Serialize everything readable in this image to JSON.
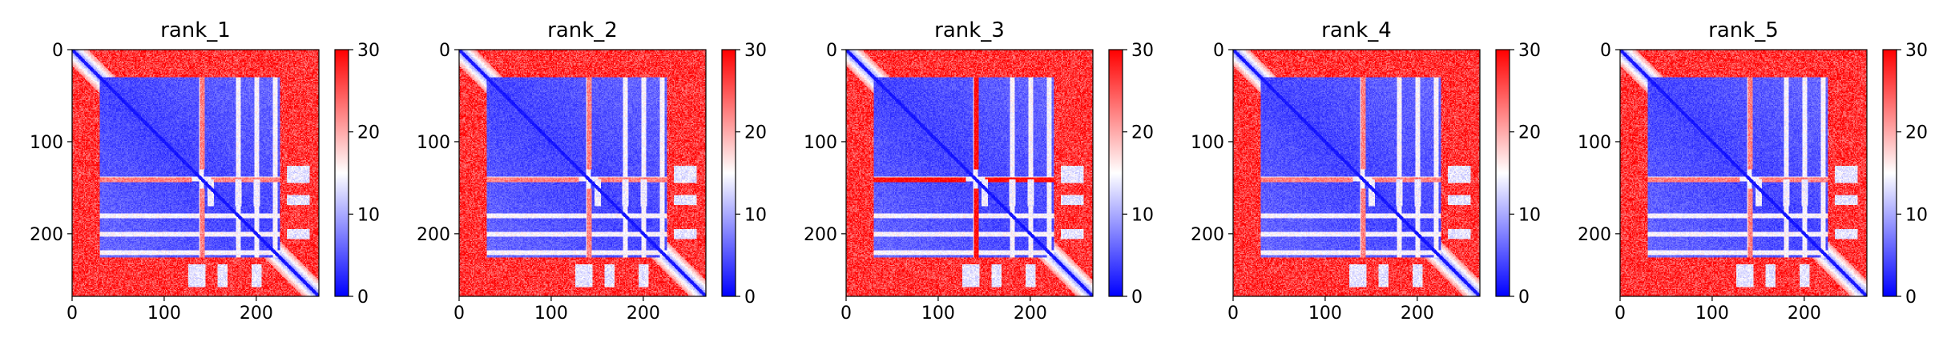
{
  "chart_data": [
    {
      "type": "heatmap",
      "title": "rank_1",
      "variant": 0,
      "matrix_size": 268,
      "x_ticks": [
        0,
        100,
        200
      ],
      "y_ticks": [
        0,
        100,
        200
      ],
      "colorbar": {
        "min": 0,
        "max": 30,
        "ticks": [
          0,
          10,
          20,
          30
        ],
        "colormap": "bwr"
      },
      "blocks": [
        [
          0,
          35
        ],
        [
          35,
          140
        ],
        [
          140,
          220
        ],
        [
          220,
          268
        ]
      ],
      "white_bands_y": [
        140,
        180,
        200,
        220
      ],
      "white_bands_x": [
        150,
        180,
        190,
        200
      ]
    },
    {
      "type": "heatmap",
      "title": "rank_2",
      "variant": 1,
      "matrix_size": 268,
      "x_ticks": [
        0,
        100,
        200
      ],
      "y_ticks": [
        0,
        100,
        200
      ],
      "colorbar": {
        "min": 0,
        "max": 30,
        "ticks": [
          0,
          10,
          20,
          30
        ],
        "colormap": "bwr"
      },
      "blocks": [
        [
          0,
          35
        ],
        [
          35,
          140
        ],
        [
          140,
          220
        ],
        [
          220,
          268
        ]
      ],
      "white_bands_y": [
        140,
        180,
        200,
        220
      ],
      "white_bands_x": [
        150,
        180,
        190,
        200
      ]
    },
    {
      "type": "heatmap",
      "title": "rank_3",
      "variant": 2,
      "matrix_size": 268,
      "x_ticks": [
        0,
        100,
        200
      ],
      "y_ticks": [
        0,
        100,
        200
      ],
      "colorbar": {
        "min": 0,
        "max": 30,
        "ticks": [
          0,
          10,
          20,
          30
        ],
        "colormap": "bwr"
      },
      "blocks": [
        [
          0,
          35
        ],
        [
          35,
          140
        ],
        [
          140,
          220
        ],
        [
          220,
          268
        ]
      ],
      "white_bands_y": [
        140,
        180,
        200,
        220
      ],
      "white_bands_x": [
        150,
        180,
        190,
        200
      ]
    },
    {
      "type": "heatmap",
      "title": "rank_4",
      "variant": 3,
      "matrix_size": 268,
      "x_ticks": [
        0,
        100,
        200
      ],
      "y_ticks": [
        0,
        100,
        200
      ],
      "colorbar": {
        "min": 0,
        "max": 30,
        "ticks": [
          0,
          10,
          20,
          30
        ],
        "colormap": "bwr"
      },
      "blocks": [
        [
          0,
          35
        ],
        [
          35,
          140
        ],
        [
          140,
          220
        ],
        [
          220,
          268
        ]
      ],
      "white_bands_y": [
        140,
        180,
        200,
        220
      ],
      "white_bands_x": [
        150,
        180,
        190,
        200
      ]
    },
    {
      "type": "heatmap",
      "title": "rank_5",
      "variant": 4,
      "matrix_size": 268,
      "x_ticks": [
        0,
        100,
        200
      ],
      "y_ticks": [
        0,
        100,
        200
      ],
      "colorbar": {
        "min": 0,
        "max": 30,
        "ticks": [
          0,
          10,
          20,
          30
        ],
        "colormap": "bwr"
      },
      "blocks": [
        [
          0,
          35
        ],
        [
          35,
          140
        ],
        [
          140,
          220
        ],
        [
          220,
          268
        ]
      ],
      "white_bands_y": [
        140,
        180,
        200,
        220
      ],
      "white_bands_x": [
        150,
        180,
        190,
        200
      ]
    }
  ]
}
